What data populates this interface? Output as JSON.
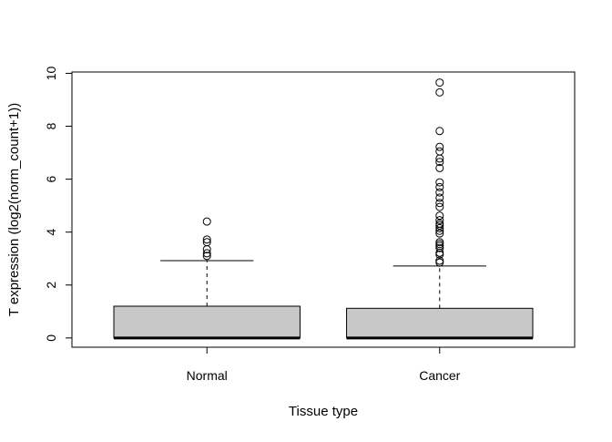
{
  "chart_data": {
    "type": "boxplot",
    "xlabel": "Tissue type",
    "ylabel": "T expression (log2(norm_count+1))",
    "ylim": [
      -0.35,
      10.05
    ],
    "yticks": [
      0,
      2,
      4,
      6,
      8,
      10
    ],
    "grid": false,
    "legend": "none",
    "colors": {
      "box_fill": "#c8c8c8",
      "stroke": "#000000",
      "background": "#ffffff"
    },
    "categories": [
      "Normal",
      "Cancer"
    ],
    "boxes": [
      {
        "category": "Normal",
        "q1": 0.0,
        "median": 0.0,
        "q3": 1.2,
        "whisker_low": 0.0,
        "whisker_high": 2.92,
        "outliers": [
          3.1,
          3.2,
          3.35,
          3.62,
          3.72,
          4.4
        ]
      },
      {
        "category": "Cancer",
        "q1": 0.0,
        "median": 0.0,
        "q3": 1.12,
        "whisker_low": 0.0,
        "whisker_high": 2.72,
        "outliers": [
          2.85,
          2.92,
          3.15,
          3.22,
          3.4,
          3.48,
          3.55,
          3.62,
          3.95,
          4.05,
          4.15,
          4.25,
          4.32,
          4.45,
          4.62,
          4.95,
          5.1,
          5.3,
          5.5,
          5.7,
          5.88,
          6.42,
          6.65,
          6.78,
          7.05,
          7.22,
          7.82,
          9.28,
          9.65
        ]
      }
    ]
  }
}
